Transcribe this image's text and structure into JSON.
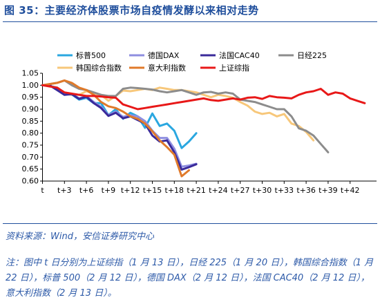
{
  "title": "图 35：主要经济体股票市场自疫情发酵以来相对走势",
  "source": "资料来源：Wind，安信证券研究中心",
  "note": "注：图中 t 日分别为上证综指（1 月 13 日），日经 225（1 月 20 日），韩国综合指数（1 月 22 日），标普 500（2 月 12 日），德国 DAX（2 月 12 日），法国 CAC40（2 月 12 日），意大利指数（2 月 13 日）。",
  "chart_data": {
    "type": "line",
    "title": "",
    "xlabel": "",
    "ylabel": "",
    "ylim": [
      0.6,
      1.05
    ],
    "xlim": [
      0,
      44
    ],
    "grid": false,
    "legend": "top",
    "yticks": [
      0.6,
      0.65,
      0.7,
      0.75,
      0.8,
      0.85,
      0.9,
      0.95,
      1.0,
      1.05
    ],
    "yticklabels": [
      "0.60",
      "0.65",
      "0.70",
      "0.75",
      "0.80",
      "0.85",
      "0.90",
      "0.95",
      "1.00",
      "1.05"
    ],
    "xticks": [
      0,
      3,
      6,
      9,
      12,
      15,
      18,
      21,
      24,
      27,
      30,
      33,
      36,
      39,
      42
    ],
    "xticklabels": [
      "t",
      "t+3",
      "t+6",
      "t+9",
      "t+12",
      "t+15",
      "t+18",
      "t+21",
      "t+24",
      "t+27",
      "t+30",
      "t+33",
      "t+36",
      "t+39",
      "t+42"
    ],
    "series": [
      {
        "name": "标普500",
        "color": "#2aa7e0",
        "x": [
          0,
          1,
          2,
          3,
          4,
          5,
          6,
          7,
          8,
          9,
          10,
          11,
          12,
          13,
          14,
          15,
          16,
          17,
          18,
          19,
          20,
          21
        ],
        "y": [
          1.0,
          0.997,
          0.99,
          0.967,
          0.962,
          0.94,
          0.947,
          0.925,
          0.925,
          0.875,
          0.9,
          0.86,
          0.885,
          0.87,
          0.822,
          0.882,
          0.83,
          0.84,
          0.81,
          0.738,
          0.765,
          0.8
        ]
      },
      {
        "name": "德国DAX",
        "color": "#8e8ee0",
        "x": [
          0,
          1,
          2,
          3,
          4,
          5,
          6,
          7,
          8,
          9,
          10,
          11,
          12,
          13,
          14,
          15,
          16,
          17,
          18,
          19,
          20,
          21
        ],
        "y": [
          1.0,
          1.0,
          0.98,
          0.96,
          0.965,
          0.945,
          0.955,
          0.93,
          0.91,
          0.875,
          0.89,
          0.868,
          0.875,
          0.87,
          0.85,
          0.81,
          0.78,
          0.78,
          0.735,
          0.66,
          0.665,
          0.672
        ]
      },
      {
        "name": "法国CAC40",
        "color": "#3a2a9a",
        "x": [
          0,
          1,
          2,
          3,
          4,
          5,
          6,
          7,
          8,
          9,
          10,
          11,
          12,
          13,
          14,
          15,
          16,
          17,
          18,
          19,
          20,
          21
        ],
        "y": [
          1.0,
          0.999,
          0.98,
          0.96,
          0.963,
          0.943,
          0.952,
          0.925,
          0.905,
          0.872,
          0.885,
          0.862,
          0.87,
          0.855,
          0.84,
          0.79,
          0.765,
          0.77,
          0.72,
          0.648,
          0.658,
          0.67
        ]
      },
      {
        "name": "日经225",
        "color": "#8c8c8c",
        "x": [
          0,
          1,
          2,
          3,
          4,
          5,
          6,
          7,
          8,
          9,
          10,
          11,
          12,
          13,
          14,
          15,
          16,
          17,
          18,
          19,
          20,
          21,
          22,
          23,
          24,
          25,
          26,
          27,
          28,
          29,
          30,
          31,
          32,
          33,
          34,
          35,
          36,
          37,
          38,
          39
        ],
        "y": [
          1.0,
          1.005,
          1.01,
          1.02,
          1.0,
          0.985,
          0.98,
          0.97,
          0.96,
          0.955,
          0.955,
          0.985,
          0.99,
          0.988,
          0.985,
          0.982,
          0.975,
          0.97,
          0.975,
          0.98,
          0.97,
          0.96,
          0.97,
          0.972,
          0.965,
          0.97,
          0.965,
          0.94,
          0.935,
          0.93,
          0.92,
          0.91,
          0.9,
          0.9,
          0.87,
          0.82,
          0.81,
          0.79,
          0.755,
          0.72
        ]
      },
      {
        "name": "韩国综合指数",
        "color": "#f7c77a",
        "x": [
          0,
          1,
          2,
          3,
          4,
          5,
          6,
          7,
          8,
          9,
          10,
          11,
          12,
          13,
          14,
          15,
          16,
          17,
          18,
          19,
          20,
          21,
          22,
          23,
          24,
          25,
          26,
          27,
          28,
          29,
          30,
          31,
          32,
          33,
          34,
          35,
          36,
          37
        ],
        "y": [
          1.0,
          1.0,
          0.98,
          0.965,
          0.96,
          0.96,
          0.975,
          0.965,
          0.96,
          0.935,
          0.955,
          0.978,
          0.975,
          0.98,
          0.985,
          0.98,
          0.99,
          0.985,
          0.98,
          0.98,
          0.975,
          0.97,
          0.96,
          0.95,
          0.96,
          0.955,
          0.948,
          0.93,
          0.915,
          0.89,
          0.88,
          0.885,
          0.87,
          0.88,
          0.84,
          0.83,
          0.805,
          0.77
        ]
      },
      {
        "name": "意大利指数",
        "color": "#e07a2a",
        "x": [
          0,
          1,
          2,
          3,
          4,
          5,
          6,
          7,
          8,
          9,
          10,
          11,
          12,
          13,
          14,
          15,
          16,
          17,
          18,
          19,
          20
        ],
        "y": [
          1.0,
          1.005,
          1.01,
          1.02,
          1.01,
          0.99,
          0.98,
          0.96,
          0.93,
          0.912,
          0.905,
          0.89,
          0.87,
          0.86,
          0.84,
          0.808,
          0.77,
          0.742,
          0.71,
          0.62,
          0.645
        ]
      },
      {
        "name": "上证综指",
        "color": "#e81818",
        "x": [
          0,
          1,
          2,
          3,
          4,
          5,
          6,
          7,
          8,
          9,
          10,
          11,
          12,
          13,
          14,
          15,
          16,
          17,
          18,
          19,
          20,
          21,
          22,
          23,
          24,
          25,
          26,
          27,
          28,
          29,
          30,
          31,
          32,
          33,
          34,
          35,
          36,
          37,
          38,
          39,
          40,
          41,
          42,
          43,
          44
        ],
        "y": [
          1.0,
          0.995,
          0.99,
          0.97,
          0.965,
          0.96,
          0.955,
          0.955,
          0.953,
          0.95,
          0.948,
          0.92,
          0.91,
          0.9,
          0.905,
          0.91,
          0.915,
          0.92,
          0.925,
          0.93,
          0.935,
          0.94,
          0.945,
          0.938,
          0.935,
          0.94,
          0.945,
          0.94,
          0.948,
          0.95,
          0.943,
          0.955,
          0.95,
          0.948,
          0.945,
          0.96,
          0.97,
          0.975,
          0.985,
          0.96,
          0.97,
          0.965,
          0.945,
          0.935,
          0.925
        ]
      }
    ]
  }
}
